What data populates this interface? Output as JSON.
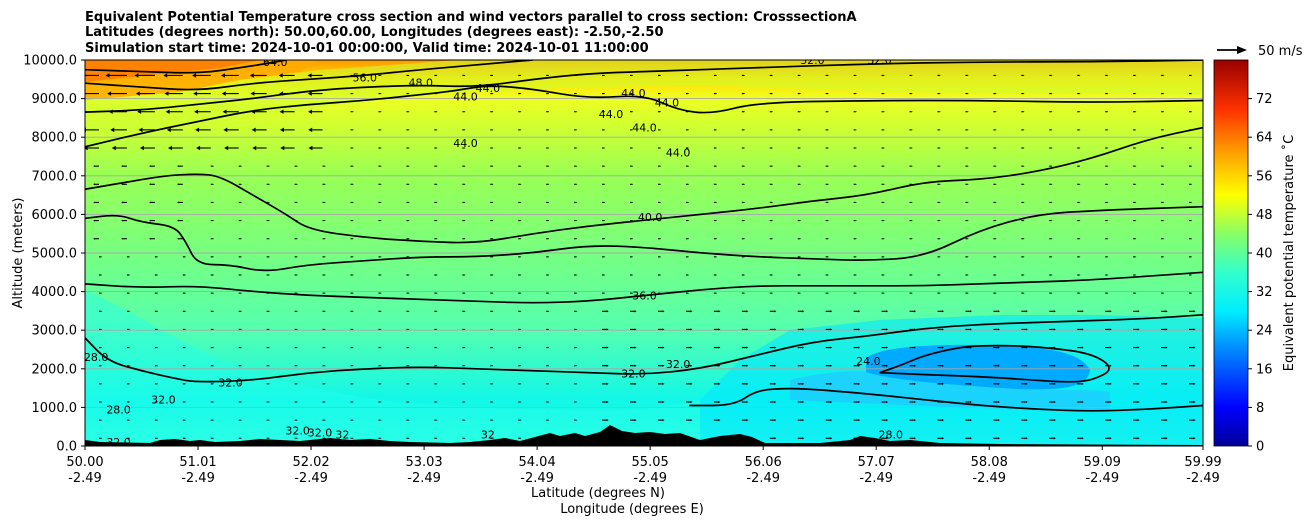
{
  "chart_data": {
    "type": "heatmap",
    "title_lines": [
      "Equivalent Potential Temperature cross section and wind vectors parallel to cross section: CrosssectionA",
      "Latitudes (degrees north): 50.00,60.00, Longitudes (degrees east): -2.50,-2.50",
      "Simulation start time: 2024-10-01 00:00:00, Valid time: 2024-10-01 11:00:00"
    ],
    "ylabel": "Altitude (meters)",
    "xlabel_lines": [
      "Latitude (degrees N)",
      "Longitude (degrees E)"
    ],
    "ylim": [
      0,
      10000
    ],
    "y_ticks": [
      "0.0",
      "1000.0",
      "2000.0",
      "3000.0",
      "4000.0",
      "5000.0",
      "6000.0",
      "7000.0",
      "8000.0",
      "9000.0",
      "10000.0"
    ],
    "y_tick_values": [
      0,
      1000,
      2000,
      3000,
      4000,
      5000,
      6000,
      7000,
      8000,
      9000,
      10000
    ],
    "x_ticks_lat": [
      "50.00",
      "51.01",
      "52.02",
      "53.03",
      "54.04",
      "55.05",
      "56.06",
      "57.07",
      "58.08",
      "59.09",
      "59.99"
    ],
    "x_ticks_lon": [
      "-2.49",
      "-2.49",
      "-2.49",
      "-2.49",
      "-2.49",
      "-2.49",
      "-2.49",
      "-2.49",
      "-2.49",
      "-2.49",
      "-2.49"
    ],
    "x_tick_values": [
      50.0,
      51.01,
      52.02,
      53.03,
      54.04,
      55.05,
      56.06,
      57.07,
      58.08,
      59.09,
      59.99
    ],
    "xlim": [
      50.0,
      59.99
    ],
    "colorbar": {
      "label": "Equivalent potential temperature ˚C",
      "range": [
        0,
        80
      ],
      "ticks": [
        "0",
        "8",
        "16",
        "24",
        "32",
        "40",
        "48",
        "56",
        "64",
        "72"
      ],
      "tick_values": [
        0,
        8,
        16,
        24,
        32,
        40,
        48,
        56,
        64,
        72
      ]
    },
    "wind_key_label": "50 m/s",
    "contour_labels": [
      {
        "text": "64.0",
        "lat": 51.7,
        "alt": 9950
      },
      {
        "text": "56.0",
        "lat": 52.5,
        "alt": 9550
      },
      {
        "text": "48.0",
        "lat": 53.0,
        "alt": 9420
      },
      {
        "text": "44.0",
        "lat": 53.6,
        "alt": 9280
      },
      {
        "text": "44.0",
        "lat": 53.4,
        "alt": 9050
      },
      {
        "text": "44.0",
        "lat": 53.4,
        "alt": 7850
      },
      {
        "text": "44.0",
        "lat": 54.7,
        "alt": 8600
      },
      {
        "text": "44.0",
        "lat": 54.9,
        "alt": 9150
      },
      {
        "text": "44.0",
        "lat": 55.0,
        "alt": 8250
      },
      {
        "text": "44.0",
        "lat": 55.2,
        "alt": 8900
      },
      {
        "text": "44.0",
        "lat": 55.3,
        "alt": 7600
      },
      {
        "text": "32.0",
        "lat": 56.5,
        "alt": 10000
      },
      {
        "text": "32.0",
        "lat": 57.1,
        "alt": 10000
      },
      {
        "text": "40.0",
        "lat": 55.05,
        "alt": 5930
      },
      {
        "text": "36.0",
        "lat": 55.0,
        "alt": 3900
      },
      {
        "text": "32.0",
        "lat": 54.9,
        "alt": 1880
      },
      {
        "text": "32.0",
        "lat": 55.3,
        "alt": 2130
      },
      {
        "text": "24.0",
        "lat": 57.0,
        "alt": 2200
      },
      {
        "text": "28.0",
        "lat": 50.1,
        "alt": 2300
      },
      {
        "text": "28.0",
        "lat": 50.3,
        "alt": 950
      },
      {
        "text": "32.0",
        "lat": 50.7,
        "alt": 1200
      },
      {
        "text": "32.0",
        "lat": 51.3,
        "alt": 1650
      },
      {
        "text": "32.0",
        "lat": 51.9,
        "alt": 400
      },
      {
        "text": "32.0",
        "lat": 52.1,
        "alt": 350
      },
      {
        "text": "32.0",
        "lat": 50.3,
        "alt": 100
      },
      {
        "text": "32",
        "lat": 52.3,
        "alt": 300
      },
      {
        "text": "32",
        "lat": 53.6,
        "alt": 300
      },
      {
        "text": "28.0",
        "lat": 57.2,
        "alt": 300
      }
    ],
    "series": [
      {
        "name": "contour 64",
        "lat": [
          50.0,
          50.5,
          51.0,
          51.4,
          51.8
        ],
        "alt": [
          9750,
          9700,
          9650,
          9800,
          10000
        ]
      },
      {
        "name": "contour 56",
        "lat": [
          50.0,
          50.5,
          51.0,
          51.5,
          52.0,
          52.5,
          53.0,
          53.6,
          54.0
        ],
        "alt": [
          9400,
          9300,
          9200,
          9400,
          9500,
          9600,
          9750,
          9900,
          10000
        ]
      },
      {
        "name": "contour 48",
        "lat": [
          50.0,
          50.5,
          51.0,
          51.5,
          52.0,
          52.5,
          53.0,
          53.5,
          54.0,
          54.5,
          55.0,
          55.5,
          56.0,
          57.0,
          58.0,
          59.0,
          59.99
        ],
        "alt": [
          8650,
          8700,
          8850,
          9000,
          9200,
          9300,
          9350,
          9300,
          9500,
          9650,
          9700,
          9750,
          9800,
          9900,
          9950,
          9950,
          10000
        ]
      },
      {
        "name": "contour 44 upper",
        "lat": [
          50.0,
          50.5,
          51.0,
          51.5,
          52.0,
          52.5,
          53.0,
          53.3,
          53.6,
          54.0,
          54.5,
          55.0,
          55.3,
          55.6,
          56.0,
          57.0,
          58.0,
          59.0,
          59.99
        ],
        "alt": [
          7750,
          8100,
          8400,
          8700,
          8850,
          8950,
          9100,
          9200,
          9350,
          9250,
          9000,
          9100,
          8700,
          8600,
          8900,
          8950,
          8950,
          8900,
          8950
        ]
      },
      {
        "name": "contour 40",
        "lat": [
          50.0,
          50.3,
          50.7,
          51.0,
          51.2,
          51.5,
          51.8,
          52.0,
          52.5,
          53.0,
          53.5,
          54.0,
          54.5,
          55.0,
          55.5,
          56.0,
          56.5,
          57.0,
          57.5,
          58.0,
          58.5,
          59.0,
          59.5,
          59.99
        ],
        "alt": [
          6650,
          6800,
          7000,
          7050,
          7000,
          6500,
          6000,
          5600,
          5400,
          5300,
          5250,
          5500,
          5700,
          5850,
          6000,
          6150,
          6350,
          6500,
          6850,
          6900,
          7100,
          7450,
          7950,
          8250
        ]
      },
      {
        "name": "contour 36",
        "lat": [
          50.0,
          50.3,
          50.5,
          50.8,
          50.9,
          51.0,
          51.3,
          51.6,
          52.0,
          52.5,
          53.0,
          53.5,
          54.0,
          54.5,
          55.0,
          55.5,
          56.0,
          56.5,
          57.0,
          57.5,
          58.0,
          58.5,
          59.0,
          59.99
        ],
        "alt": [
          5900,
          6000,
          5800,
          5700,
          5300,
          4700,
          4700,
          4500,
          4700,
          4800,
          4900,
          4900,
          5000,
          5200,
          5150,
          5000,
          4900,
          4850,
          4800,
          4900,
          5600,
          6000,
          6100,
          6200
        ]
      },
      {
        "name": "contour 32 mid",
        "lat": [
          50.0,
          50.5,
          51.0,
          51.5,
          52.0,
          52.5,
          53.0,
          53.5,
          54.0,
          54.5,
          55.0,
          55.5,
          56.0,
          56.5,
          57.0,
          57.5,
          58.0,
          58.5,
          59.0,
          59.99
        ],
        "alt": [
          4200,
          4100,
          4150,
          4000,
          3900,
          3850,
          3800,
          3750,
          3700,
          3750,
          3900,
          4050,
          4150,
          4150,
          4150,
          4150,
          4200,
          4250,
          4300,
          4500
        ]
      },
      {
        "name": "contour 32 lower",
        "lat": [
          50.0,
          50.2,
          50.5,
          50.8,
          51.0,
          51.5,
          52.0,
          52.5,
          53.0,
          53.5,
          54.0,
          54.5,
          55.0,
          55.5,
          56.0,
          56.5,
          57.0,
          57.5,
          58.0,
          58.5,
          59.0,
          59.5,
          59.99
        ],
        "alt": [
          2800,
          2200,
          1950,
          1750,
          1650,
          1700,
          1900,
          2000,
          2050,
          2000,
          1950,
          1900,
          1850,
          2000,
          2350,
          2700,
          2850,
          3050,
          3150,
          3200,
          3250,
          3300,
          3400
        ]
      },
      {
        "name": "contour 28",
        "lat": [
          55.4,
          55.8,
          56.0,
          56.3,
          56.6,
          57.0,
          57.5,
          58.0,
          58.5,
          59.0,
          59.5,
          59.99
        ],
        "alt": [
          1050,
          1050,
          1450,
          1500,
          1450,
          1350,
          1200,
          1050,
          950,
          900,
          950,
          1050
        ]
      },
      {
        "name": "contour 24",
        "lat": [
          57.1,
          57.3,
          57.5,
          57.8,
          58.0,
          58.3,
          58.6,
          59.0,
          59.2,
          59.0,
          58.8,
          58.5,
          58.0,
          57.5,
          57.1
        ],
        "alt": [
          1900,
          2100,
          2350,
          2550,
          2600,
          2600,
          2550,
          2400,
          2000,
          1700,
          1650,
          1700,
          1800,
          1850,
          1900
        ]
      }
    ],
    "wind": "vectors parallel to cross section; strong leftward jet near 50.0-52.0 N above 7500 m, weak rightward flow elsewhere"
  }
}
